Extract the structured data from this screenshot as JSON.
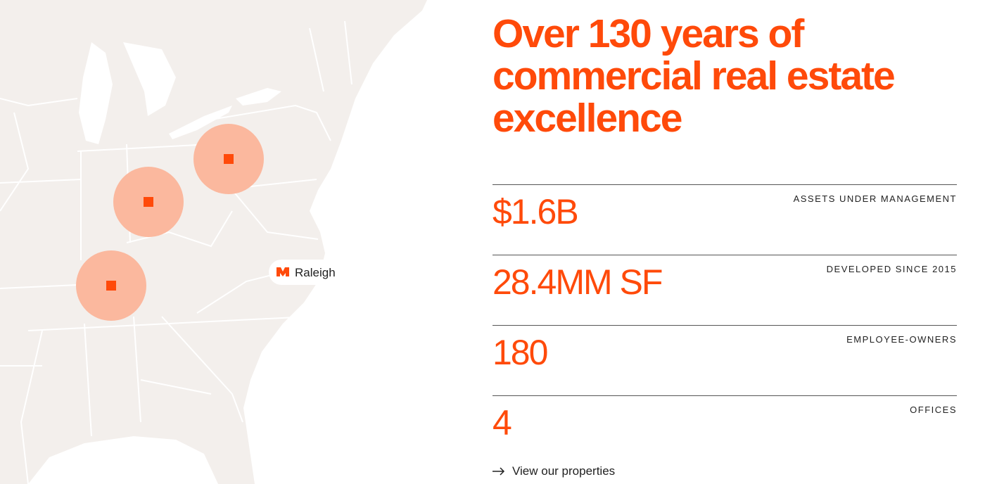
{
  "heading": "Over 130 years of commercial real estate excellence",
  "map": {
    "marker_label": "Raleigh"
  },
  "stats": [
    {
      "value": "$1.6B",
      "label": "ASSETS UNDER MANAGEMENT"
    },
    {
      "value": "28.4MM SF",
      "label": "DEVELOPED SINCE 2015"
    },
    {
      "value": "180",
      "label": "EMPLOYEE-OWNERS"
    },
    {
      "value": "4",
      "label": "OFFICES"
    }
  ],
  "link": "View our properties"
}
